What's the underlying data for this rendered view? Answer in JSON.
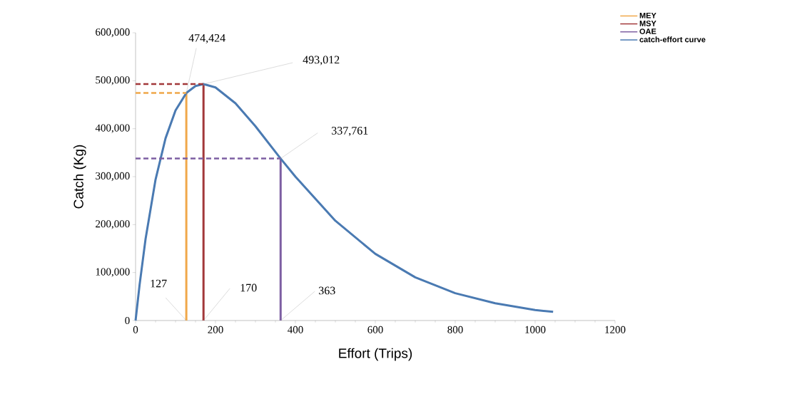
{
  "chart_data": {
    "type": "line",
    "xlabel": "Effort (Trips)",
    "ylabel": "Catch (Kg)",
    "xlim": [
      0,
      1200
    ],
    "ylim": [
      0,
      600000
    ],
    "xticks": [
      0,
      200,
      400,
      600,
      800,
      1000,
      1200
    ],
    "yticks": [
      0,
      {
        "value": 100000,
        "label": "100,000"
      },
      {
        "value": 200000,
        "label": "200,000"
      },
      {
        "value": 300000,
        "label": "300,000"
      },
      {
        "value": 400000,
        "label": "400,000"
      },
      {
        "value": 500000,
        "label": "500,000"
      },
      {
        "value": 600000,
        "label": "600,000"
      }
    ],
    "grid": false,
    "legend": "top right",
    "series": [
      {
        "name": "MEY",
        "color": "#f0a84a",
        "x": [
          127,
          127
        ],
        "values": [
          0,
          474424
        ],
        "line_style": "solid"
      },
      {
        "name": "MSY",
        "color": "#a2383a",
        "x": [
          170,
          170
        ],
        "values": [
          0,
          493012
        ],
        "line_style": "solid"
      },
      {
        "name": "OAE",
        "color": "#7d5fa2",
        "x": [
          363,
          363
        ],
        "values": [
          0,
          337761
        ],
        "line_style": "solid"
      },
      {
        "name": "catch-effort curve",
        "color": "#4a7ab2",
        "x": [
          0,
          10,
          25,
          50,
          75,
          100,
          127,
          150,
          170,
          200,
          250,
          300,
          363,
          400,
          500,
          600,
          700,
          800,
          900,
          1000,
          1045
        ],
        "values": [
          0,
          74000,
          170000,
          294000,
          380000,
          438000,
          474424,
          489000,
          493012,
          486000,
          453000,
          405000,
          337761,
          300000,
          208000,
          139000,
          90000,
          57000,
          36000,
          22000,
          18000
        ],
        "line_style": "solid"
      },
      {
        "color": "#f0a84a",
        "x": [
          0,
          127
        ],
        "values": [
          474424,
          474424
        ],
        "line_style": "dashed"
      },
      {
        "color": "#a2383a",
        "x": [
          0,
          170
        ],
        "values": [
          493012,
          493012
        ],
        "line_style": "dashed"
      },
      {
        "color": "#7d5fa2",
        "x": [
          0,
          363
        ],
        "values": [
          337761,
          337761
        ],
        "line_style": "dashed"
      }
    ],
    "annotations": [
      {
        "text": "474,424",
        "x": 127,
        "y": 474424
      },
      {
        "text": "493,012",
        "x": 170,
        "y": 493012
      },
      {
        "text": "337,761",
        "x": 363,
        "y": 337761
      },
      {
        "text": "127",
        "x": 127,
        "y": 0
      },
      {
        "text": "170",
        "x": 170,
        "y": 0
      },
      {
        "text": "363",
        "x": 363,
        "y": 0
      }
    ]
  }
}
